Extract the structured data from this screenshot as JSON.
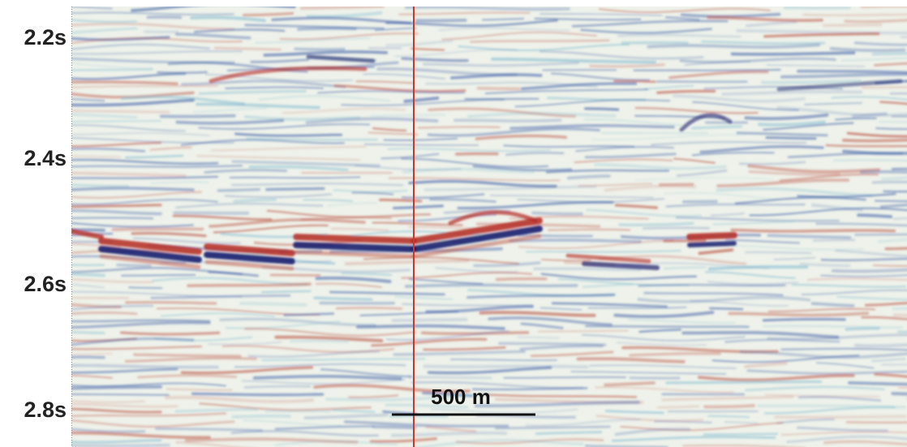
{
  "time_labels": [
    "2.2s",
    "2.4s",
    "2.6s",
    "2.8s"
  ],
  "scale_bar": {
    "label": "500 m"
  }
}
